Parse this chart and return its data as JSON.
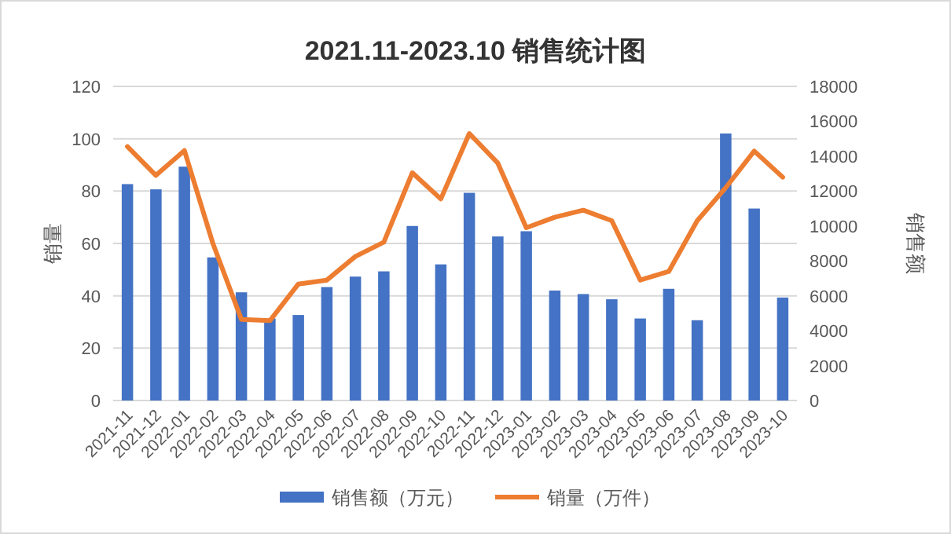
{
  "chart_data": {
    "type": "bar",
    "title": "2021.11-2023.10 销售统计图",
    "ylabel": "销量",
    "y2label": "销售额",
    "categories": [
      "2021-11",
      "2021-12",
      "2022-01",
      "2022-02",
      "2022-03",
      "2022-04",
      "2022-05",
      "2022-06",
      "2022-07",
      "2022-08",
      "2022-09",
      "2022-10",
      "2022-11",
      "2022-12",
      "2023-01",
      "2023-02",
      "2023-03",
      "2023-04",
      "2023-05",
      "2023-06",
      "2023-07",
      "2023-08",
      "2023-09",
      "2023-10"
    ],
    "series": [
      {
        "name": "销售额（万元）",
        "axis": "y2",
        "color": "#4472c4",
        "values": [
          12400,
          12100,
          13400,
          8200,
          6200,
          4700,
          4900,
          6500,
          7100,
          7400,
          10000,
          7800,
          11900,
          9400,
          9700,
          6300,
          6100,
          5800,
          4700,
          6400,
          4600,
          15300,
          11000,
          5900
        ]
      },
      {
        "name": "销量（万件）",
        "type": "line",
        "color": "#ed7d31",
        "values": [
          97,
          86,
          95.5,
          60,
          31,
          30.5,
          44.5,
          46,
          55,
          60.5,
          87,
          77,
          102,
          90.7,
          66,
          70,
          72.7,
          68.7,
          46,
          49.3,
          68.7,
          81.3,
          95.3,
          85.3
        ]
      }
    ],
    "ylim": [
      0,
      120
    ],
    "yticks": [
      0,
      20,
      40,
      60,
      80,
      100,
      120
    ],
    "y2lim": [
      0,
      18000
    ],
    "y2ticks": [
      0,
      2000,
      4000,
      6000,
      8000,
      10000,
      12000,
      14000,
      16000,
      18000
    ],
    "grid": "y",
    "legend": "bottom"
  }
}
